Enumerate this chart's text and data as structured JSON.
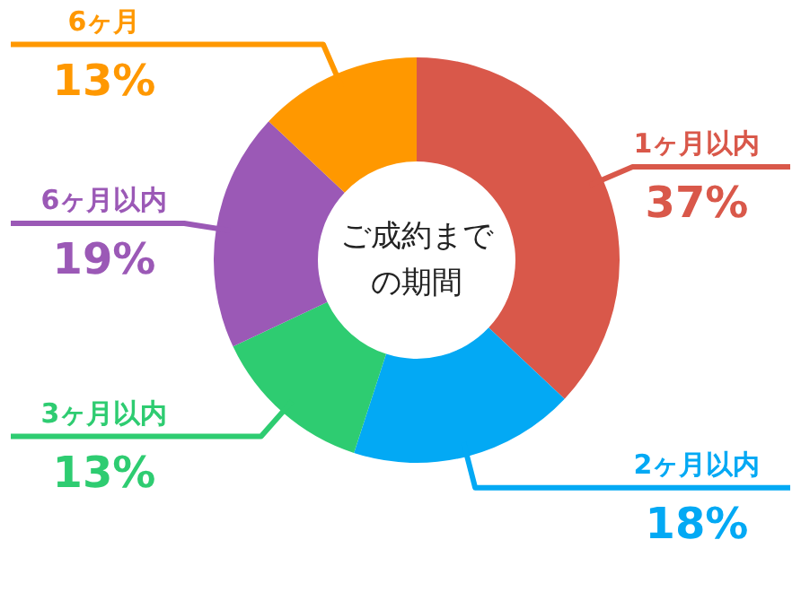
{
  "chart_data": {
    "type": "donut",
    "title": "ご成約までの期間",
    "categories": [
      "1ヶ月以内",
      "2ヶ月以内",
      "3ヶ月以内",
      "6ヶ月以内",
      "6ヶ月"
    ],
    "values": [
      37,
      18,
      13,
      19,
      13
    ],
    "colors": [
      "#d9584a",
      "#03a9f4",
      "#2ecc71",
      "#9b59b6",
      "#ff9800"
    ],
    "value_labels": [
      "37%",
      "18%",
      "13%",
      "19%",
      "13%"
    ]
  }
}
